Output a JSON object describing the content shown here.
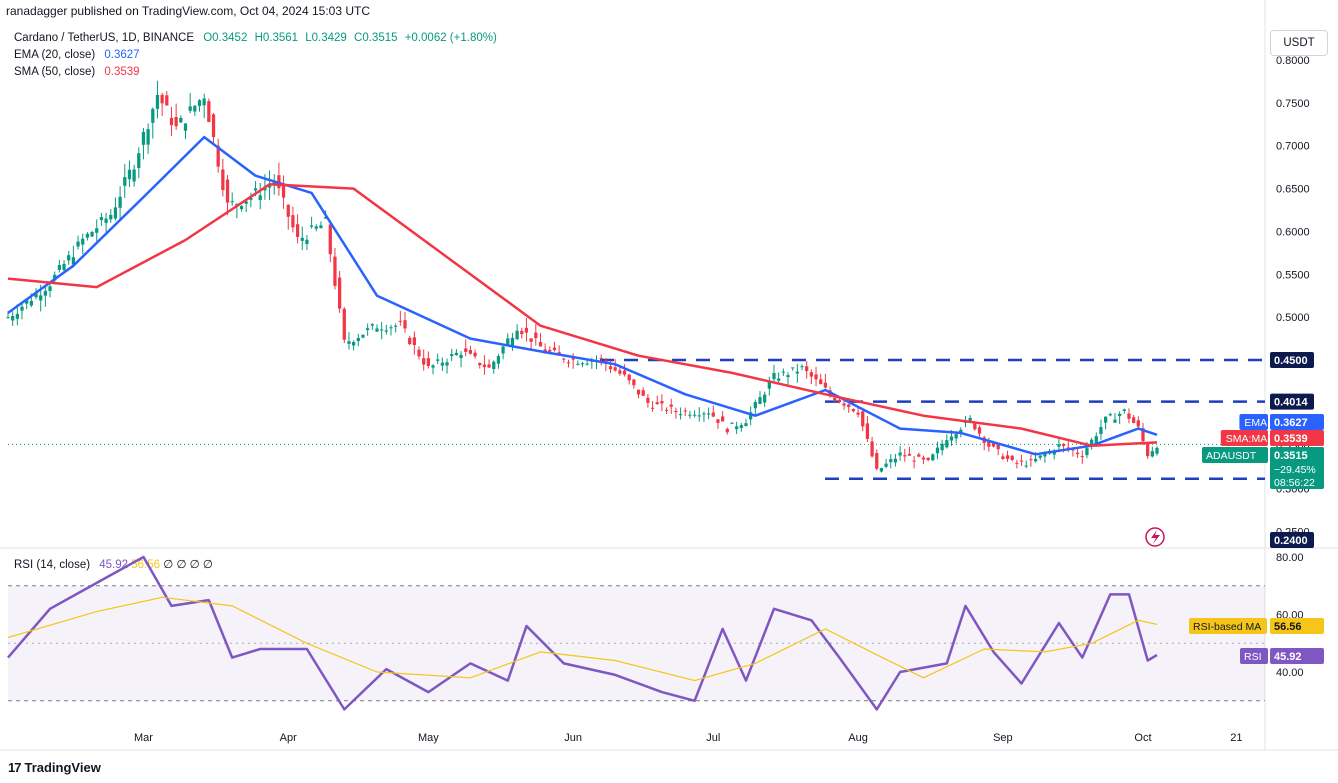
{
  "header": {
    "publisher_line": "ranadagger published on TradingView.com, Oct 04, 2024 15:03 UTC"
  },
  "legend": {
    "symbol": "Cardano / TetherUS, 1D, BINANCE",
    "open": "O0.3452",
    "high": "H0.3561",
    "low": "L0.3429",
    "close": "C0.3515",
    "change": "+0.0062 (+1.80%)",
    "ema_label": "EMA (20, close)",
    "ema_value": "0.3627",
    "sma_label": "SMA (50, close)",
    "sma_value": "0.3539",
    "rsi_label": "RSI (14, close)",
    "rsi_value": "45.92",
    "rsi_ma_value": "56.56",
    "rsi_extra": "∅ ∅ ∅ ∅"
  },
  "currency_button": "USDT",
  "footer": {
    "brand": "TradingView"
  },
  "colors": {
    "up": "#089981",
    "down": "#f23645",
    "ema": "#2962ff",
    "sma": "#f23645",
    "rsi": "#7e57c2",
    "rsi_ma": "#f5c518",
    "level_line": "#1e3fbf"
  },
  "chart_data": [
    {
      "type": "candlestick",
      "title": "Cardano / TetherUS, 1D, BINANCE",
      "y_unit": "USDT",
      "y_axis_ticks": [
        "0.8000",
        "0.7500",
        "0.7000",
        "0.6500",
        "0.6000",
        "0.5500",
        "0.5000",
        "0.4500",
        "0.4000",
        "0.3500",
        "0.3000",
        "0.2500"
      ],
      "ylim": [
        0.24,
        0.8
      ],
      "x_labels": [
        "Mar",
        "Apr",
        "May",
        "Jun",
        "Jul",
        "Aug",
        "Sep",
        "Oct",
        "21"
      ],
      "date_range": [
        "2024-02-01",
        "2024-10-04"
      ],
      "close_series": [
        {
          "date": "2024-02-01",
          "close": 0.5
        },
        {
          "date": "2024-02-10",
          "close": 0.54
        },
        {
          "date": "2024-02-17",
          "close": 0.59
        },
        {
          "date": "2024-02-23",
          "close": 0.62
        },
        {
          "date": "2024-02-28",
          "close": 0.68
        },
        {
          "date": "2024-03-04",
          "close": 0.76
        },
        {
          "date": "2024-03-08",
          "close": 0.72
        },
        {
          "date": "2024-03-14",
          "close": 0.76
        },
        {
          "date": "2024-03-19",
          "close": 0.63
        },
        {
          "date": "2024-03-24",
          "close": 0.64
        },
        {
          "date": "2024-03-29",
          "close": 0.66
        },
        {
          "date": "2024-04-03",
          "close": 0.59
        },
        {
          "date": "2024-04-09",
          "close": 0.61
        },
        {
          "date": "2024-04-13",
          "close": 0.47
        },
        {
          "date": "2024-04-20",
          "close": 0.49
        },
        {
          "date": "2024-04-25",
          "close": 0.49
        },
        {
          "date": "2024-05-01",
          "close": 0.44
        },
        {
          "date": "2024-05-08",
          "close": 0.46
        },
        {
          "date": "2024-05-14",
          "close": 0.44
        },
        {
          "date": "2024-05-20",
          "close": 0.49
        },
        {
          "date": "2024-05-26",
          "close": 0.46
        },
        {
          "date": "2024-06-01",
          "close": 0.45
        },
        {
          "date": "2024-06-07",
          "close": 0.45
        },
        {
          "date": "2024-06-12",
          "close": 0.43
        },
        {
          "date": "2024-06-17",
          "close": 0.4
        },
        {
          "date": "2024-06-23",
          "close": 0.39
        },
        {
          "date": "2024-06-30",
          "close": 0.39
        },
        {
          "date": "2024-07-04",
          "close": 0.37
        },
        {
          "date": "2024-07-08",
          "close": 0.38
        },
        {
          "date": "2024-07-14",
          "close": 0.43
        },
        {
          "date": "2024-07-20",
          "close": 0.44
        },
        {
          "date": "2024-07-26",
          "close": 0.41
        },
        {
          "date": "2024-08-01",
          "close": 0.39
        },
        {
          "date": "2024-08-05",
          "close": 0.32
        },
        {
          "date": "2024-08-10",
          "close": 0.34
        },
        {
          "date": "2024-08-16",
          "close": 0.33
        },
        {
          "date": "2024-08-20",
          "close": 0.36
        },
        {
          "date": "2024-08-25",
          "close": 0.38
        },
        {
          "date": "2024-08-29",
          "close": 0.35
        },
        {
          "date": "2024-09-03",
          "close": 0.33
        },
        {
          "date": "2024-09-07",
          "close": 0.33
        },
        {
          "date": "2024-09-13",
          "close": 0.35
        },
        {
          "date": "2024-09-18",
          "close": 0.34
        },
        {
          "date": "2024-09-23",
          "close": 0.38
        },
        {
          "date": "2024-09-27",
          "close": 0.39
        },
        {
          "date": "2024-09-30",
          "close": 0.37
        },
        {
          "date": "2024-10-02",
          "close": 0.34
        },
        {
          "date": "2024-10-04",
          "close": 0.3515
        }
      ],
      "series": [
        {
          "name": "EMA (20, close)",
          "last": 0.3627,
          "values": [
            {
              "date": "2024-02-01",
              "v": 0.505
            },
            {
              "date": "2024-02-15",
              "v": 0.56
            },
            {
              "date": "2024-03-01",
              "v": 0.64
            },
            {
              "date": "2024-03-14",
              "v": 0.71
            },
            {
              "date": "2024-03-25",
              "v": 0.665
            },
            {
              "date": "2024-04-06",
              "v": 0.645
            },
            {
              "date": "2024-04-20",
              "v": 0.525
            },
            {
              "date": "2024-05-10",
              "v": 0.475
            },
            {
              "date": "2024-05-25",
              "v": 0.46
            },
            {
              "date": "2024-06-10",
              "v": 0.445
            },
            {
              "date": "2024-06-25",
              "v": 0.41
            },
            {
              "date": "2024-07-10",
              "v": 0.385
            },
            {
              "date": "2024-07-25",
              "v": 0.415
            },
            {
              "date": "2024-08-10",
              "v": 0.37
            },
            {
              "date": "2024-08-23",
              "v": 0.365
            },
            {
              "date": "2024-09-08",
              "v": 0.34
            },
            {
              "date": "2024-09-20",
              "v": 0.35
            },
            {
              "date": "2024-09-30",
              "v": 0.37
            },
            {
              "date": "2024-10-04",
              "v": 0.3627
            }
          ]
        },
        {
          "name": "SMA (50, close)",
          "last": 0.3539,
          "values": [
            {
              "date": "2024-02-01",
              "v": 0.545
            },
            {
              "date": "2024-02-20",
              "v": 0.535
            },
            {
              "date": "2024-03-10",
              "v": 0.59
            },
            {
              "date": "2024-03-28",
              "v": 0.655
            },
            {
              "date": "2024-04-15",
              "v": 0.65
            },
            {
              "date": "2024-05-05",
              "v": 0.57
            },
            {
              "date": "2024-05-25",
              "v": 0.49
            },
            {
              "date": "2024-06-15",
              "v": 0.455
            },
            {
              "date": "2024-07-05",
              "v": 0.435
            },
            {
              "date": "2024-07-25",
              "v": 0.41
            },
            {
              "date": "2024-08-15",
              "v": 0.385
            },
            {
              "date": "2024-09-05",
              "v": 0.37
            },
            {
              "date": "2024-09-20",
              "v": 0.35
            },
            {
              "date": "2024-10-04",
              "v": 0.3539
            }
          ]
        }
      ],
      "horizontal_levels": [
        {
          "label": "0.4500",
          "value": 0.45
        },
        {
          "label": "0.4014",
          "value": 0.4014
        },
        {
          "label": "0.3114",
          "value": 0.3114
        }
      ],
      "price_badges": [
        {
          "label": "EMA",
          "value": "0.3627"
        },
        {
          "label": "SMA:MA",
          "value": "0.3539"
        },
        {
          "label": "ADAUSDT",
          "value": "0.3515",
          "change": "−29.45%",
          "countdown": "08:56:22"
        }
      ],
      "bottom_label": "0.2400"
    },
    {
      "type": "line",
      "title": "RSI (14, close)",
      "y_axis_ticks": [
        "80.00",
        "60.00",
        "40.00"
      ],
      "ylim": [
        20,
        80
      ],
      "bands": [
        30,
        70
      ],
      "series": [
        {
          "name": "RSI",
          "last": 45.92,
          "values": [
            {
              "date": "2024-02-01",
              "v": 45
            },
            {
              "date": "2024-02-10",
              "v": 62
            },
            {
              "date": "2024-02-20",
              "v": 71
            },
            {
              "date": "2024-03-01",
              "v": 80
            },
            {
              "date": "2024-03-07",
              "v": 63
            },
            {
              "date": "2024-03-15",
              "v": 65
            },
            {
              "date": "2024-03-20",
              "v": 45
            },
            {
              "date": "2024-03-26",
              "v": 48
            },
            {
              "date": "2024-04-05",
              "v": 48
            },
            {
              "date": "2024-04-13",
              "v": 27
            },
            {
              "date": "2024-04-22",
              "v": 41
            },
            {
              "date": "2024-05-01",
              "v": 33
            },
            {
              "date": "2024-05-10",
              "v": 43
            },
            {
              "date": "2024-05-18",
              "v": 37
            },
            {
              "date": "2024-05-22",
              "v": 56
            },
            {
              "date": "2024-05-30",
              "v": 43
            },
            {
              "date": "2024-06-10",
              "v": 39
            },
            {
              "date": "2024-06-20",
              "v": 33
            },
            {
              "date": "2024-06-27",
              "v": 30
            },
            {
              "date": "2024-07-03",
              "v": 55
            },
            {
              "date": "2024-07-08",
              "v": 37
            },
            {
              "date": "2024-07-14",
              "v": 62
            },
            {
              "date": "2024-07-22",
              "v": 58
            },
            {
              "date": "2024-07-28",
              "v": 45
            },
            {
              "date": "2024-08-05",
              "v": 27
            },
            {
              "date": "2024-08-10",
              "v": 40
            },
            {
              "date": "2024-08-20",
              "v": 43
            },
            {
              "date": "2024-08-24",
              "v": 63
            },
            {
              "date": "2024-08-30",
              "v": 47
            },
            {
              "date": "2024-09-05",
              "v": 36
            },
            {
              "date": "2024-09-13",
              "v": 57
            },
            {
              "date": "2024-09-18",
              "v": 45
            },
            {
              "date": "2024-09-24",
              "v": 67
            },
            {
              "date": "2024-09-28",
              "v": 67
            },
            {
              "date": "2024-10-02",
              "v": 44
            },
            {
              "date": "2024-10-04",
              "v": 45.92
            }
          ]
        },
        {
          "name": "RSI-based MA",
          "last": 56.56,
          "values": [
            {
              "date": "2024-02-01",
              "v": 52
            },
            {
              "date": "2024-02-20",
              "v": 61
            },
            {
              "date": "2024-03-05",
              "v": 66
            },
            {
              "date": "2024-03-20",
              "v": 63
            },
            {
              "date": "2024-04-05",
              "v": 50
            },
            {
              "date": "2024-04-20",
              "v": 40
            },
            {
              "date": "2024-05-10",
              "v": 38
            },
            {
              "date": "2024-05-25",
              "v": 47
            },
            {
              "date": "2024-06-10",
              "v": 44
            },
            {
              "date": "2024-06-27",
              "v": 37
            },
            {
              "date": "2024-07-10",
              "v": 43
            },
            {
              "date": "2024-07-25",
              "v": 55
            },
            {
              "date": "2024-08-05",
              "v": 46
            },
            {
              "date": "2024-08-15",
              "v": 38
            },
            {
              "date": "2024-08-28",
              "v": 48
            },
            {
              "date": "2024-09-10",
              "v": 47
            },
            {
              "date": "2024-09-20",
              "v": 50
            },
            {
              "date": "2024-09-30",
              "v": 58
            },
            {
              "date": "2024-10-04",
              "v": 56.56
            }
          ]
        }
      ],
      "badges": [
        {
          "label": "RSI-based MA",
          "value": "56.56"
        },
        {
          "label": "RSI",
          "value": "45.92"
        }
      ]
    }
  ]
}
